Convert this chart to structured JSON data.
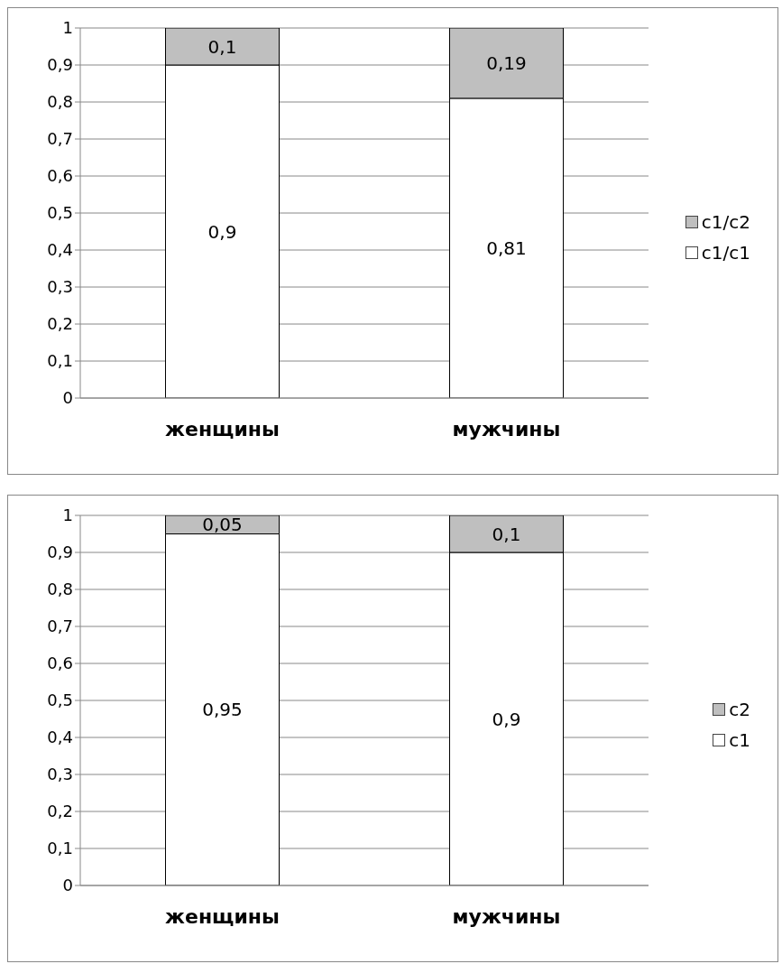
{
  "chart_data": [
    {
      "type": "bar",
      "stacked": true,
      "categories": [
        "женщины",
        "мужчины"
      ],
      "series": [
        {
          "name": "c1/c1",
          "color": "#ffffff",
          "values": [
            0.9,
            0.81
          ],
          "value_labels": [
            "0,9",
            "0,81"
          ]
        },
        {
          "name": "c1/c2",
          "color": "#bfbfbf",
          "values": [
            0.1,
            0.19
          ],
          "value_labels": [
            "0,1",
            "0,19"
          ]
        }
      ],
      "ylim": [
        0,
        1
      ],
      "yticks": [
        {
          "value": 0,
          "label": "0"
        },
        {
          "value": 0.1,
          "label": "0,1"
        },
        {
          "value": 0.2,
          "label": "0,2"
        },
        {
          "value": 0.3,
          "label": "0,3"
        },
        {
          "value": 0.4,
          "label": "0,4"
        },
        {
          "value": 0.5,
          "label": "0,5"
        },
        {
          "value": 0.6,
          "label": "0,6"
        },
        {
          "value": 0.7,
          "label": "0,7"
        },
        {
          "value": 0.8,
          "label": "0,8"
        },
        {
          "value": 0.9,
          "label": "0,9"
        },
        {
          "value": 1,
          "label": "1"
        }
      ],
      "grid": "y",
      "legend": "right"
    },
    {
      "type": "bar",
      "stacked": true,
      "categories": [
        "женщины",
        "мужчины"
      ],
      "series": [
        {
          "name": "c1",
          "color": "#ffffff",
          "values": [
            0.95,
            0.9
          ],
          "value_labels": [
            "0,95",
            "0,9"
          ]
        },
        {
          "name": "c2",
          "color": "#bfbfbf",
          "values": [
            0.05,
            0.1
          ],
          "value_labels": [
            "0,05",
            "0,1"
          ]
        }
      ],
      "ylim": [
        0,
        1
      ],
      "yticks": [
        {
          "value": 0,
          "label": "0"
        },
        {
          "value": 0.1,
          "label": "0,1"
        },
        {
          "value": 0.2,
          "label": "0,2"
        },
        {
          "value": 0.3,
          "label": "0,3"
        },
        {
          "value": 0.4,
          "label": "0,4"
        },
        {
          "value": 0.5,
          "label": "0,5"
        },
        {
          "value": 0.6,
          "label": "0,6"
        },
        {
          "value": 0.7,
          "label": "0,7"
        },
        {
          "value": 0.8,
          "label": "0,8"
        },
        {
          "value": 0.9,
          "label": "0,9"
        },
        {
          "value": 1,
          "label": "1"
        }
      ],
      "grid": "y",
      "legend": "right"
    }
  ]
}
